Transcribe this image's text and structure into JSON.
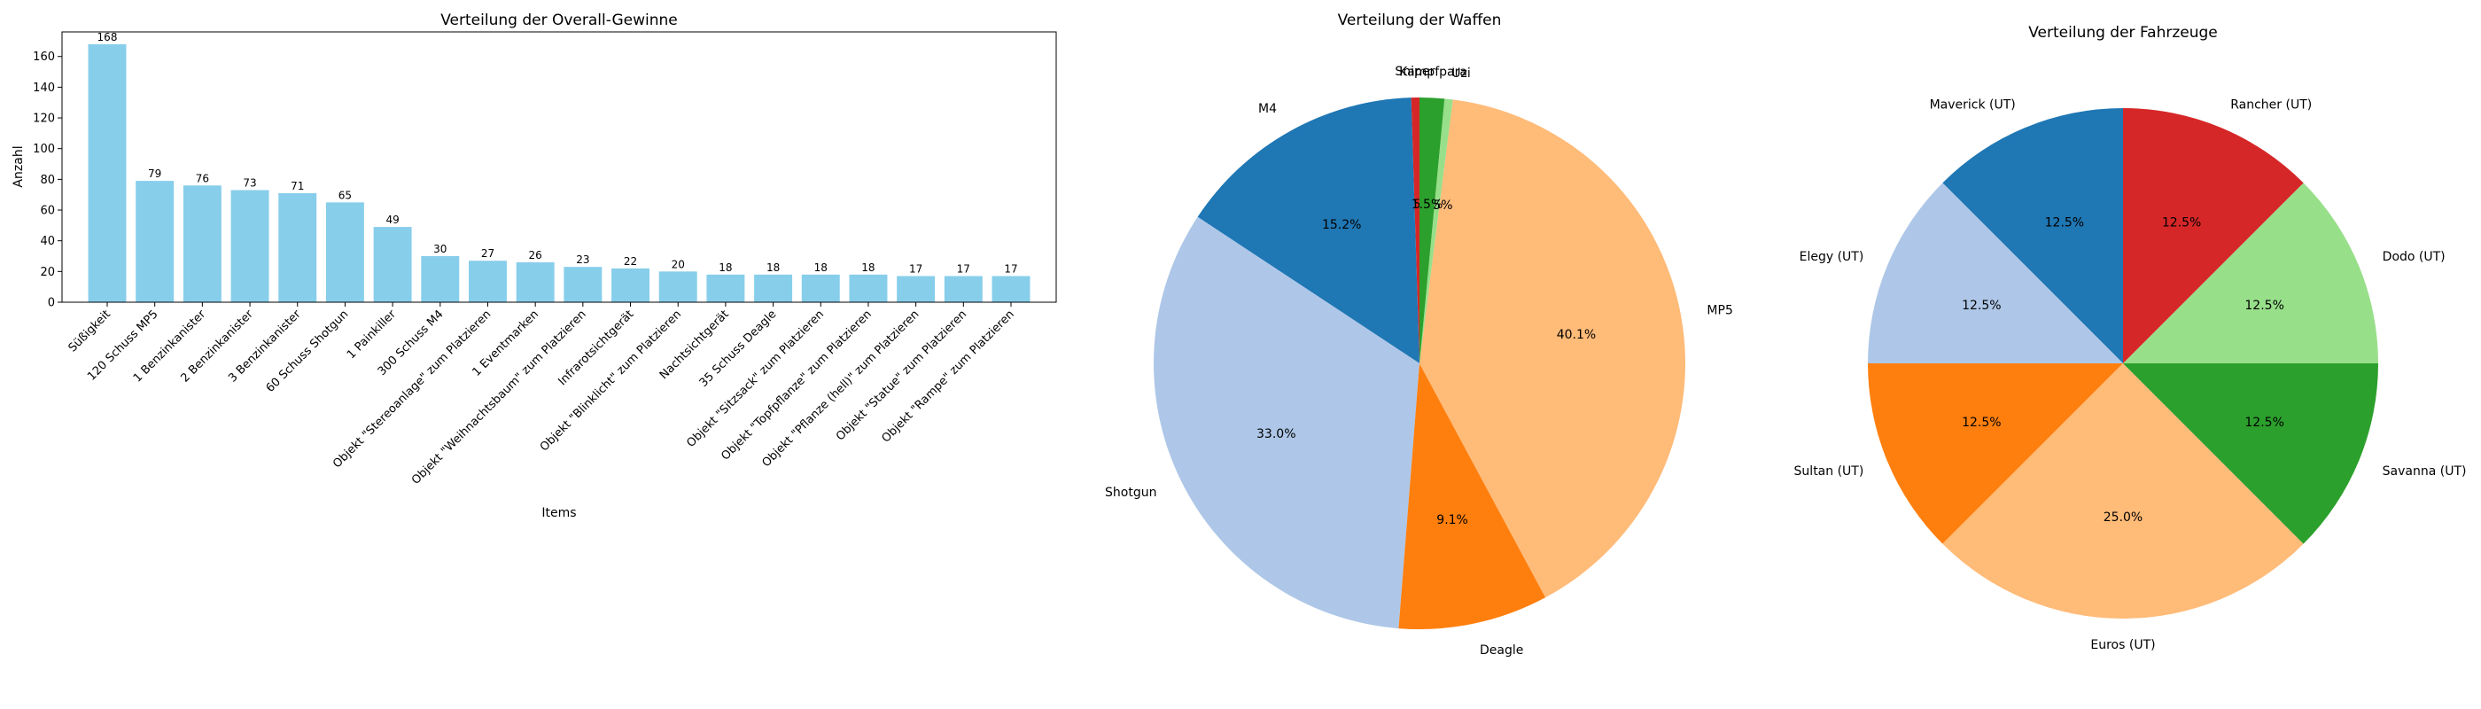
{
  "chart_data": [
    {
      "type": "bar",
      "title": "Verteilung der Overall-Gewinne",
      "xlabel": "Items",
      "ylabel": "Anzahl",
      "ylim": [
        0,
        176
      ],
      "yticks": [
        0,
        20,
        40,
        60,
        80,
        100,
        120,
        140,
        160
      ],
      "bar_color": "#87ceeb",
      "categories": [
        "Süßigkeit",
        "120 Schuss MP5",
        "1 Benzinkanister",
        "2 Benzinkanister",
        "3 Benzinkanister",
        "60 Schuss Shotgun",
        "1 Painkiller",
        "300 Schuss M4",
        "Objekt \"Stereoanlage\" zum Platzieren",
        "1 Eventmarken",
        "Objekt \"Weihnachtsbaum\" zum Platzieren",
        "Infrarotsichtgerät",
        "Objekt \"Blinklicht\" zum Platzieren",
        "Nachtsichtgerät",
        "35 Schuss Deagle",
        "Objekt \"Sitzsack\" zum Platzieren",
        "Objekt \"Topfpflanze\" zum Platzieren",
        "Objekt \"Pflanze (hell)\" zum Platzieren",
        "Objekt \"Statue\" zum Platzieren",
        "Objekt \"Rampe\" zum Platzieren"
      ],
      "values": [
        168,
        79,
        76,
        73,
        71,
        65,
        49,
        30,
        27,
        26,
        23,
        22,
        20,
        18,
        18,
        18,
        18,
        17,
        17,
        17
      ]
    },
    {
      "type": "pie",
      "title": "Verteilung der Waffen",
      "labels": [
        "Sniper",
        "M4",
        "Shotgun",
        "Deagle",
        "MP5",
        "Uzi",
        "Kampfpara"
      ],
      "values": [
        0.5,
        15.2,
        33.0,
        9.1,
        40.1,
        0.5,
        1.5
      ],
      "pct_labels": [
        "0.5%",
        "15.2%",
        "33.0%",
        "9.1%",
        "40.1%",
        "0.5%",
        "1.5%"
      ],
      "colors": [
        "#d62728",
        "#1f77b4",
        "#aec7e8",
        "#ff7f0e",
        "#ffbb78",
        "#98df8a",
        "#2ca02c"
      ]
    },
    {
      "type": "pie",
      "title": "Verteilung der Fahrzeuge",
      "labels": [
        "Maverick (UT)",
        "Elegy (UT)",
        "Sultan (UT)",
        "Euros (UT)",
        "Savanna (UT)",
        "Dodo (UT)",
        "Rancher (UT)"
      ],
      "values": [
        12.5,
        12.5,
        12.5,
        25.0,
        12.5,
        12.5,
        12.5
      ],
      "pct_labels": [
        "12.5%",
        "12.5%",
        "12.5%",
        "25.0%",
        "12.5%",
        "12.5%",
        "12.5%"
      ],
      "colors": [
        "#1f77b4",
        "#aec7e8",
        "#ff7f0e",
        "#ffbb78",
        "#2ca02c",
        "#98df8a",
        "#d62728"
      ]
    }
  ]
}
